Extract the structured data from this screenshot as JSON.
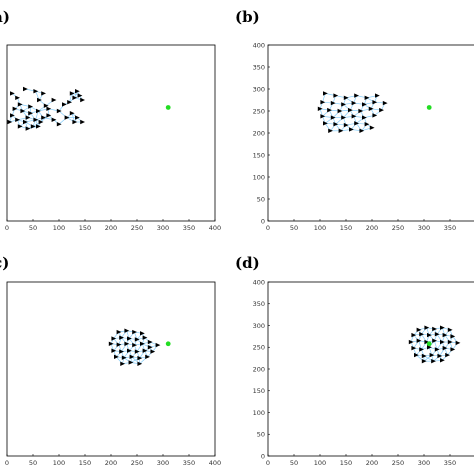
{
  "colors": {
    "agent": "#000000",
    "edge": "#87cefa",
    "target": "#22dd22",
    "frame": "#000000"
  },
  "chart_data": [
    {
      "type": "scatter",
      "panel_label": "",
      "x_ticks": [
        0,
        50,
        100,
        150,
        200,
        250,
        300,
        350,
        400
      ],
      "y_ticks": [],
      "xlim": [
        0,
        400
      ],
      "ylim": [
        0,
        400
      ],
      "target": [
        310,
        258
      ],
      "agents": [
        [
          10,
          290
        ],
        [
          20,
          280
        ],
        [
          35,
          300
        ],
        [
          55,
          295
        ],
        [
          70,
          290
        ],
        [
          62,
          275
        ],
        [
          25,
          265
        ],
        [
          15,
          255
        ],
        [
          30,
          250
        ],
        [
          45,
          260
        ],
        [
          60,
          250
        ],
        [
          75,
          262
        ],
        [
          90,
          275
        ],
        [
          80,
          255
        ],
        [
          40,
          235
        ],
        [
          55,
          230
        ],
        [
          20,
          230
        ],
        [
          35,
          225
        ],
        [
          50,
          215
        ],
        [
          65,
          225
        ],
        [
          80,
          240
        ],
        [
          90,
          230
        ],
        [
          100,
          250
        ],
        [
          110,
          265
        ],
        [
          125,
          290
        ],
        [
          135,
          295
        ],
        [
          140,
          285
        ],
        [
          130,
          280
        ],
        [
          120,
          270
        ],
        [
          145,
          275
        ],
        [
          125,
          245
        ],
        [
          135,
          235
        ],
        [
          130,
          225
        ],
        [
          145,
          225
        ],
        [
          115,
          235
        ],
        [
          100,
          220
        ],
        [
          10,
          240
        ],
        [
          5,
          225
        ],
        [
          25,
          215
        ],
        [
          40,
          210
        ],
        [
          60,
          215
        ],
        [
          70,
          235
        ],
        [
          45,
          245
        ]
      ]
    },
    {
      "type": "scatter",
      "panel_label": "(b)",
      "x_ticks": [
        0,
        50,
        100,
        150,
        200,
        250,
        300,
        350,
        400
      ],
      "y_ticks": [
        0,
        50,
        100,
        150,
        200,
        250,
        300,
        350,
        400
      ],
      "xlim": [
        0,
        400
      ],
      "ylim": [
        0,
        400
      ],
      "target": [
        310,
        258
      ],
      "agents": [
        [
          110,
          290
        ],
        [
          130,
          285
        ],
        [
          150,
          280
        ],
        [
          170,
          285
        ],
        [
          190,
          280
        ],
        [
          210,
          285
        ],
        [
          105,
          270
        ],
        [
          125,
          268
        ],
        [
          145,
          265
        ],
        [
          165,
          268
        ],
        [
          185,
          265
        ],
        [
          205,
          270
        ],
        [
          225,
          268
        ],
        [
          100,
          255
        ],
        [
          118,
          252
        ],
        [
          138,
          250
        ],
        [
          158,
          252
        ],
        [
          178,
          250
        ],
        [
          198,
          255
        ],
        [
          218,
          252
        ],
        [
          105,
          238
        ],
        [
          125,
          235
        ],
        [
          145,
          235
        ],
        [
          165,
          238
        ],
        [
          185,
          235
        ],
        [
          205,
          240
        ],
        [
          110,
          222
        ],
        [
          130,
          220
        ],
        [
          150,
          218
        ],
        [
          170,
          222
        ],
        [
          190,
          220
        ],
        [
          120,
          205
        ],
        [
          140,
          205
        ],
        [
          160,
          208
        ],
        [
          180,
          205
        ],
        [
          200,
          212
        ]
      ]
    },
    {
      "type": "scatter",
      "panel_label": "",
      "x_ticks": [
        0,
        50,
        100,
        150,
        200,
        250,
        300,
        350,
        400
      ],
      "y_ticks": [],
      "xlim": [
        0,
        400
      ],
      "ylim": [
        0,
        400
      ],
      "target": [
        310,
        258
      ],
      "agents": [
        [
          215,
          285
        ],
        [
          230,
          288
        ],
        [
          245,
          285
        ],
        [
          260,
          282
        ],
        [
          205,
          270
        ],
        [
          220,
          272
        ],
        [
          235,
          270
        ],
        [
          250,
          268
        ],
        [
          265,
          272
        ],
        [
          275,
          262
        ],
        [
          200,
          258
        ],
        [
          215,
          256
        ],
        [
          230,
          258
        ],
        [
          245,
          255
        ],
        [
          260,
          258
        ],
        [
          275,
          250
        ],
        [
          290,
          255
        ],
        [
          205,
          242
        ],
        [
          220,
          240
        ],
        [
          235,
          242
        ],
        [
          250,
          240
        ],
        [
          265,
          242
        ],
        [
          280,
          240
        ],
        [
          210,
          228
        ],
        [
          225,
          226
        ],
        [
          240,
          228
        ],
        [
          255,
          225
        ],
        [
          270,
          228
        ],
        [
          222,
          212
        ],
        [
          238,
          215
        ],
        [
          255,
          212
        ]
      ]
    },
    {
      "type": "scatter",
      "panel_label": "(d)",
      "x_ticks": [
        0,
        50,
        100,
        150,
        200,
        250,
        300,
        350,
        400
      ],
      "y_ticks": [
        0,
        50,
        100,
        150,
        200,
        250,
        300,
        350,
        400
      ],
      "xlim": [
        0,
        400
      ],
      "ylim": [
        0,
        400
      ],
      "target": [
        310,
        258
      ],
      "agents": [
        [
          290,
          290
        ],
        [
          305,
          295
        ],
        [
          320,
          292
        ],
        [
          335,
          295
        ],
        [
          350,
          290
        ],
        [
          280,
          278
        ],
        [
          295,
          280
        ],
        [
          310,
          278
        ],
        [
          325,
          280
        ],
        [
          340,
          278
        ],
        [
          355,
          275
        ],
        [
          275,
          262
        ],
        [
          290,
          265
        ],
        [
          305,
          262
        ],
        [
          320,
          265
        ],
        [
          335,
          262
        ],
        [
          350,
          262
        ],
        [
          365,
          260
        ],
        [
          280,
          248
        ],
        [
          295,
          245
        ],
        [
          310,
          250
        ],
        [
          325,
          245
        ],
        [
          340,
          248
        ],
        [
          355,
          245
        ],
        [
          285,
          232
        ],
        [
          300,
          230
        ],
        [
          315,
          232
        ],
        [
          330,
          230
        ],
        [
          345,
          232
        ],
        [
          300,
          218
        ],
        [
          318,
          218
        ],
        [
          335,
          220
        ]
      ]
    }
  ],
  "panel_labels_left_cropped": [
    "(a)",
    "(c)"
  ]
}
